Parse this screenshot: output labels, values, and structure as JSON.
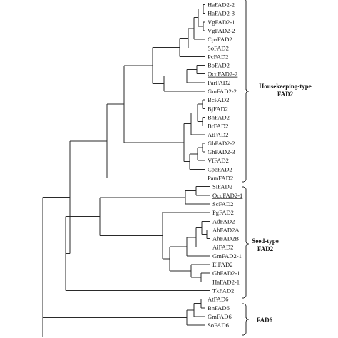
{
  "leaves": [
    {
      "label": "HaFAD2-2",
      "underline": false
    },
    {
      "label": "HaFAD2-3",
      "underline": false
    },
    {
      "label": "VgFAD2-1",
      "underline": false
    },
    {
      "label": "VgFAD2-2",
      "underline": false
    },
    {
      "label": "CpaFAD2",
      "underline": false
    },
    {
      "label": "SoFAD2",
      "underline": false
    },
    {
      "label": "PcFAD2",
      "underline": false
    },
    {
      "label": "BoFAD2",
      "underline": false
    },
    {
      "label": "OcpFAD2-2",
      "underline": true
    },
    {
      "label": "ParFAD2",
      "underline": false
    },
    {
      "label": "GmFAD2-2",
      "underline": false
    },
    {
      "label": "BcFAD2",
      "underline": false
    },
    {
      "label": "BjFAD2",
      "underline": false
    },
    {
      "label": "BnFAD2",
      "underline": false
    },
    {
      "label": "BrFAD2",
      "underline": false
    },
    {
      "label": "AtFAD2",
      "underline": false
    },
    {
      "label": "GhFAD2-2",
      "underline": false
    },
    {
      "label": "GhFAD2-3",
      "underline": false
    },
    {
      "label": "VfFAD2",
      "underline": false
    },
    {
      "label": "CpeFAD2",
      "underline": false
    },
    {
      "label": "PamFAD2",
      "underline": false
    },
    {
      "label": "SiFAD2",
      "underline": false
    },
    {
      "label": "OcpFAD2-1",
      "underline": true
    },
    {
      "label": "ScFAD2",
      "underline": false
    },
    {
      "label": "PgFAD2",
      "underline": false
    },
    {
      "label": "AdFAD2",
      "underline": false
    },
    {
      "label": "AhFAD2A",
      "underline": false
    },
    {
      "label": "AhFAD2B",
      "underline": false
    },
    {
      "label": "AiFAD2",
      "underline": false
    },
    {
      "label": "GmFAD2-1",
      "underline": false
    },
    {
      "label": "ElFAD2",
      "underline": false
    },
    {
      "label": "GhFAD2-1",
      "underline": false
    },
    {
      "label": "HaFAD2-1",
      "underline": false
    },
    {
      "label": "TkFAD2",
      "underline": false
    },
    {
      "label": "AtFAD6",
      "underline": false
    },
    {
      "label": "BnFAD6",
      "underline": false
    },
    {
      "label": "GmFAD6",
      "underline": false
    },
    {
      "label": "SoFAD6",
      "underline": false
    }
  ],
  "groups": [
    {
      "lines": [
        "Housekeeping-type",
        "FAD2"
      ]
    },
    {
      "lines": [
        "Seed-type",
        "FAD2"
      ]
    },
    {
      "lines": [
        "FAD6"
      ]
    }
  ]
}
